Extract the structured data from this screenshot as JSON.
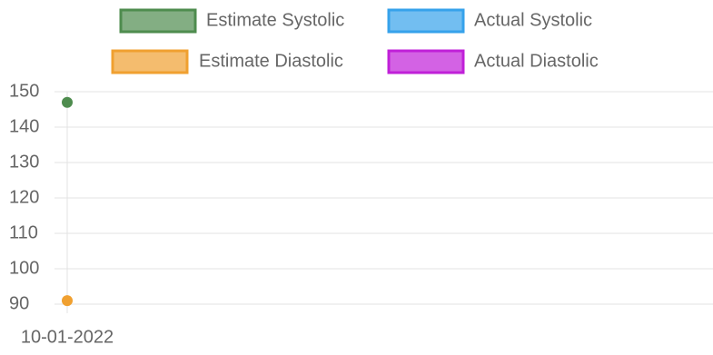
{
  "chart_data": {
    "type": "line",
    "categories": [
      "10-01-2022"
    ],
    "series": [
      {
        "name": "Estimate Systolic",
        "color": "#4e8c4e",
        "values": [
          147
        ]
      },
      {
        "name": "Actual Systolic",
        "color": "#36a2eb",
        "values": [
          null
        ]
      },
      {
        "name": "Estimate Diastolic",
        "color": "#f0a030",
        "values": [
          91
        ]
      },
      {
        "name": "Actual Diastolic",
        "color": "#c020d8",
        "values": [
          null
        ]
      }
    ],
    "ylim": [
      90,
      150
    ],
    "yticks": [
      90,
      100,
      110,
      120,
      130,
      140,
      150
    ],
    "grid": true
  }
}
